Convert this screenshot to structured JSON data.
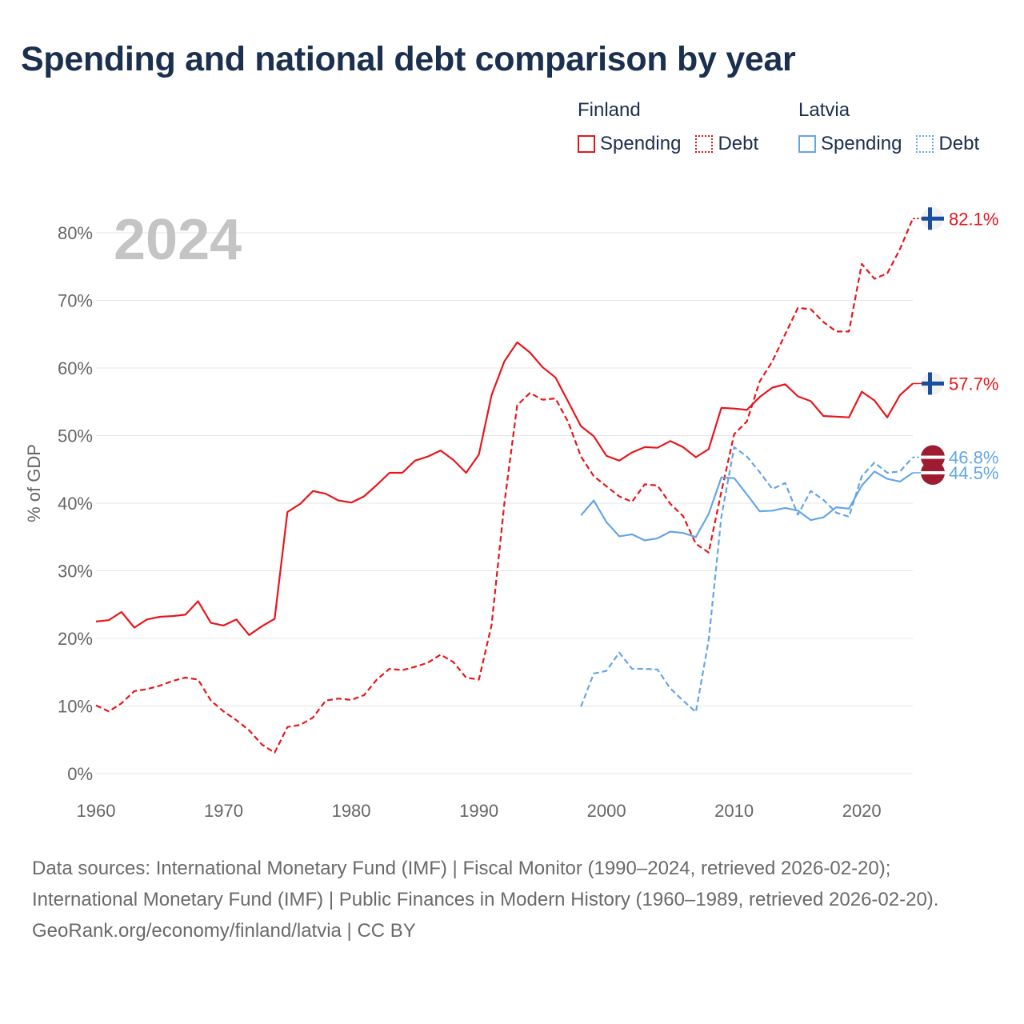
{
  "title": "Spending and national debt comparison by year",
  "legend": {
    "groups": [
      {
        "name": "Finland",
        "items": [
          {
            "label": "Spending",
            "style": "solid",
            "color": "#e8151b"
          },
          {
            "label": "Debt",
            "style": "dotted",
            "color": "#e8151b"
          }
        ]
      },
      {
        "name": "Latvia",
        "items": [
          {
            "label": "Spending",
            "style": "solid",
            "color": "#63a6e4"
          },
          {
            "label": "Debt",
            "style": "dotted",
            "color": "#63a6e4"
          }
        ]
      }
    ]
  },
  "footer": {
    "sources": "Data sources: International Monetary Fund (IMF) | Fiscal Monitor (1990–2024, retrieved 2026-02-20); International Monetary Fund (IMF) | Public Finances in Modern History (1960–1989, retrieved 2026-02-20).",
    "site": "GeoRank.org/economy/finland/latvia | CC BY"
  },
  "colors": {
    "finland": "#e8151b",
    "latvia": "#63a6e4",
    "finland_flag_blue": "#1a4fa0",
    "latvia_flag_red": "#9e1b32",
    "grid": "#e4e4e4",
    "axis_text": "#666666",
    "year_watermark": "#c4c4c4"
  },
  "chart_data": {
    "type": "line",
    "year_label": "2024",
    "ylabel": "% of GDP",
    "xlim": [
      1960,
      2024
    ],
    "ylim": [
      0,
      85
    ],
    "x_ticks": [
      "1960",
      "1970",
      "1980",
      "1990",
      "2000",
      "2010",
      "2020"
    ],
    "y_ticks": [
      "0%",
      "10%",
      "20%",
      "30%",
      "40%",
      "50%",
      "60%",
      "70%",
      "80%"
    ],
    "series": [
      {
        "name": "Finland Spending",
        "country": "Finland",
        "metric": "Spending",
        "dash": "solid",
        "end_label": "57.7%",
        "x_start": 1960,
        "values": [
          22.5,
          22.7,
          23.9,
          21.6,
          22.8,
          23.2,
          23.3,
          23.5,
          25.5,
          22.3,
          21.9,
          22.8,
          20.5,
          21.8,
          22.9,
          38.7,
          39.9,
          41.8,
          41.4,
          40.4,
          40.1,
          41.0,
          42.7,
          44.5,
          44.5,
          46.3,
          46.9,
          47.8,
          46.4,
          44.5,
          47.2,
          56.0,
          61.0,
          63.8,
          62.3,
          60.1,
          58.6,
          55.0,
          51.4,
          49.9,
          47.0,
          46.3,
          47.5,
          48.3,
          48.2,
          49.2,
          48.3,
          46.8,
          48.0,
          54.1,
          54.0,
          53.8,
          55.7,
          57.1,
          57.6,
          55.8,
          55.1,
          52.9,
          52.8,
          52.7,
          56.5,
          55.2,
          52.7,
          56.0,
          57.7
        ]
      },
      {
        "name": "Finland Debt",
        "country": "Finland",
        "metric": "Debt",
        "dash": "dashed",
        "end_label": "82.1%",
        "x_start": 1960,
        "values": [
          10.1,
          9.2,
          10.4,
          12.2,
          12.5,
          13.0,
          13.7,
          14.2,
          13.9,
          10.8,
          9.2,
          7.9,
          6.4,
          4.3,
          3.1,
          6.9,
          7.2,
          8.3,
          10.8,
          11.1,
          10.9,
          11.6,
          13.9,
          15.5,
          15.3,
          15.8,
          16.4,
          17.6,
          16.5,
          14.2,
          13.9,
          22.0,
          40.0,
          54.5,
          56.3,
          55.3,
          55.5,
          52.0,
          46.9,
          44.0,
          42.5,
          41.0,
          40.2,
          42.8,
          42.6,
          39.9,
          38.1,
          34.0,
          32.7,
          41.7,
          50.2,
          52.1,
          58.0,
          61.0,
          65.0,
          68.9,
          68.7,
          66.8,
          65.4,
          65.4,
          75.4,
          73.2,
          74.0,
          77.6,
          82.1
        ]
      },
      {
        "name": "Latvia Spending",
        "country": "Latvia",
        "metric": "Spending",
        "dash": "solid",
        "end_label": "44.5%",
        "x_start": 1998,
        "values": [
          38.2,
          40.4,
          37.2,
          35.1,
          35.4,
          34.5,
          34.8,
          35.8,
          35.6,
          35.0,
          38.4,
          43.8,
          43.7,
          41.3,
          38.8,
          38.9,
          39.3,
          38.9,
          37.5,
          37.9,
          39.4,
          39.2,
          42.6,
          44.7,
          43.6,
          43.2,
          44.5
        ]
      },
      {
        "name": "Latvia Debt",
        "country": "Latvia",
        "metric": "Debt",
        "dash": "dashed",
        "end_label": "46.8%",
        "x_start": 1998,
        "values": [
          9.9,
          14.8,
          15.2,
          17.9,
          15.5,
          15.5,
          15.4,
          12.6,
          10.8,
          9.1,
          19.7,
          38.0,
          48.3,
          46.9,
          44.6,
          42.1,
          43.0,
          38.3,
          41.8,
          40.5,
          38.6,
          38.0,
          44.0,
          46.0,
          44.5,
          44.7,
          46.8
        ]
      }
    ]
  }
}
